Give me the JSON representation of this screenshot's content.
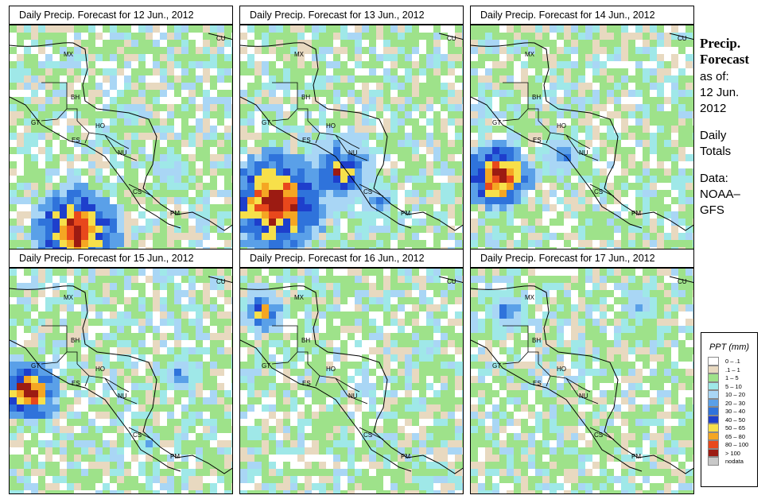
{
  "panels": [
    {
      "title": "Daily Precip. Forecast for  12 Jun., 2012"
    },
    {
      "title": "Daily Precip. Forecast for  13 Jun., 2012"
    },
    {
      "title": "Daily Precip. Forecast for  14 Jun., 2012"
    },
    {
      "title": "Daily Precip. Forecast for  15 Jun., 2012"
    },
    {
      "title": "Daily Precip. Forecast for  16 Jun., 2012"
    },
    {
      "title": "Daily Precip. Forecast for  17 Jun., 2012"
    }
  ],
  "country_labels": [
    "MX",
    "CU",
    "BH",
    "GT",
    "HO",
    "ES",
    "NU",
    "CS",
    "PM"
  ],
  "side": {
    "title_line1": "Precip.",
    "title_line2": "Forecast",
    "asof_1": "as of:",
    "asof_2": "12 Jun.",
    "asof_3": "2012",
    "totals_1": "Daily",
    "totals_2": "Totals",
    "data_1": "Data:",
    "data_2": "NOAA–",
    "data_3": "GFS"
  },
  "legend": {
    "title": "PPT (mm)",
    "items": [
      {
        "label": "0 – .1",
        "color": "#ffffff"
      },
      {
        "label": ".1 – 1",
        "color": "#e8d9c0"
      },
      {
        "label": "1 – 5",
        "color": "#9ee28a"
      },
      {
        "label": "5 – 10",
        "color": "#9fe8e8"
      },
      {
        "label": "10 – 20",
        "color": "#a9d6f5"
      },
      {
        "label": "20 – 30",
        "color": "#5aa0e8"
      },
      {
        "label": "30 – 40",
        "color": "#2f73db"
      },
      {
        "label": "40 – 50",
        "color": "#1e3fcc"
      },
      {
        "label": "50 – 65",
        "color": "#f7e04a"
      },
      {
        "label": "65 – 80",
        "color": "#f5a623"
      },
      {
        "label": "80 – 100",
        "color": "#e8481c"
      },
      {
        "label": "> 100",
        "color": "#9c1b12"
      },
      {
        "label": "nodata",
        "color": "#c8c8c8"
      }
    ]
  }
}
